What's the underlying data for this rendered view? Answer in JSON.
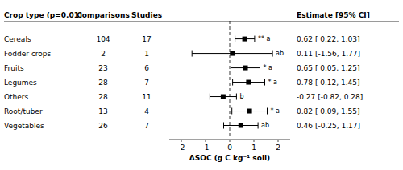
{
  "chart_data": {
    "type": "forest",
    "title": "Crop type (p=0.01)",
    "xlabel": "ΔSOC (g C kg⁻¹ soil)",
    "categories": [
      "Cereals",
      "Fodder crops",
      "Fruits",
      "Legumes",
      "Others",
      "Root/tuber",
      "Vegetables"
    ],
    "columns": [
      {
        "name": "Comparisons",
        "values": [
          104,
          2,
          23,
          28,
          28,
          13,
          26
        ]
      },
      {
        "name": "Studies",
        "values": [
          17,
          1,
          6,
          7,
          11,
          4,
          7
        ]
      }
    ],
    "series": [
      {
        "name": "Estimate [95% CI]",
        "color": "black",
        "values": [
          0.62,
          0.11,
          0.65,
          0.78,
          -0.27,
          0.82,
          0.46
        ],
        "ci_low": [
          0.22,
          -1.56,
          0.05,
          0.12,
          -0.82,
          0.09,
          -0.25
        ],
        "ci_high": [
          1.03,
          1.77,
          1.25,
          1.45,
          0.28,
          1.55,
          1.17
        ],
        "value_labels": [
          "0.62 [ 0.22, 1.03]",
          "0.11 [-1.56, 1.77]",
          "0.65 [ 0.05, 1.25]",
          "0.78 [ 0.12, 1.45]",
          "-0.27 [-0.82, 0.28]",
          "0.82 [ 0.09, 1.55]",
          "0.46 [-0.25, 1.17]"
        ],
        "annotations": [
          "** a",
          "ab",
          "* a",
          "* a",
          "b",
          "* a",
          "ab"
        ]
      }
    ],
    "reference_x": 0,
    "xlim": [
      -2.5,
      2.5
    ],
    "xticks": [
      -2,
      -1,
      0,
      1,
      2
    ]
  }
}
